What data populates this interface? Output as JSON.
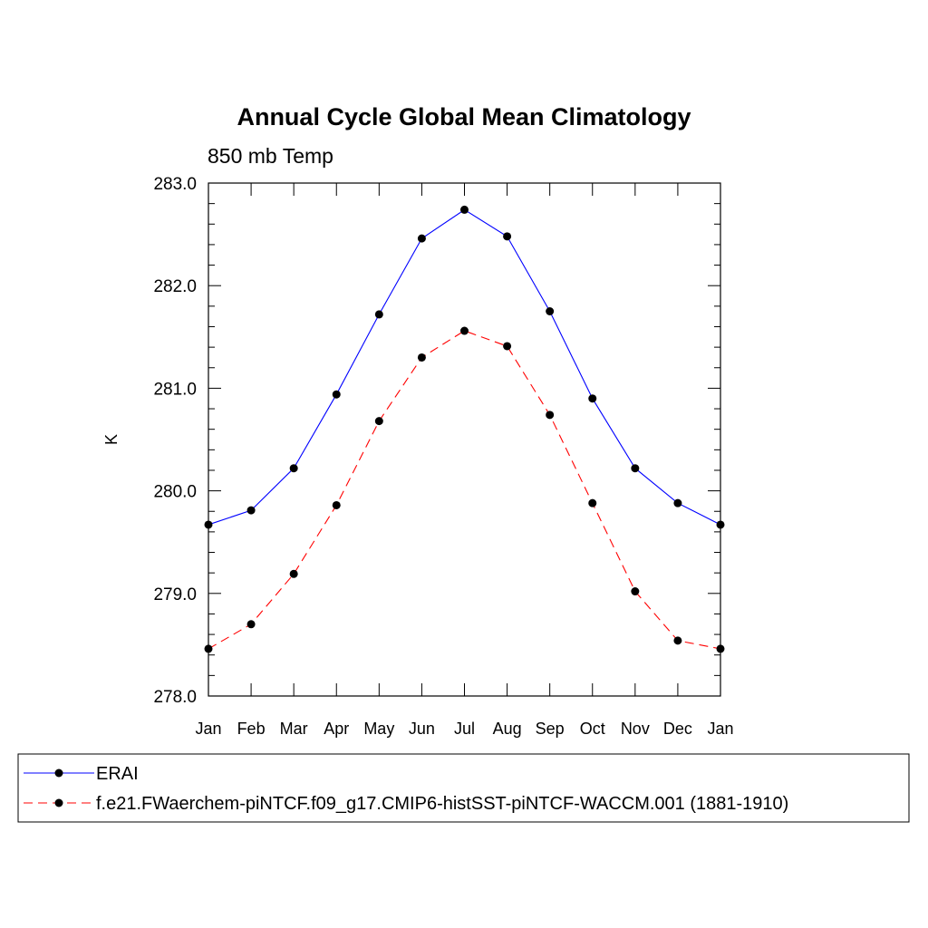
{
  "chart_data": {
    "type": "line",
    "title": "Annual Cycle Global Mean Climatology",
    "subtitle": "850 mb Temp",
    "xlabel": "",
    "ylabel": "K",
    "categories": [
      "Jan",
      "Feb",
      "Mar",
      "Apr",
      "May",
      "Jun",
      "Jul",
      "Aug",
      "Sep",
      "Oct",
      "Nov",
      "Dec",
      "Jan"
    ],
    "ylim": [
      278.0,
      283.0
    ],
    "yticks": [
      278.0,
      279.0,
      280.0,
      281.0,
      282.0,
      283.0
    ],
    "ytick_labels": [
      "278.0",
      "279.0",
      "280.0",
      "281.0",
      "282.0",
      "283.0"
    ],
    "grid": false,
    "legend_position": "bottom",
    "series": [
      {
        "name": "ERAI",
        "color": "#0000ff",
        "dash": "solid",
        "marker": "filled-circle",
        "values": [
          279.67,
          279.81,
          280.22,
          280.94,
          281.72,
          282.46,
          282.74,
          282.48,
          281.75,
          280.9,
          280.22,
          279.88,
          279.67
        ]
      },
      {
        "name": "f.e21.FWaerchem-piNTCF.f09_g17.CMIP6-histSST-piNTCF-WACCM.001 (1881-1910)",
        "color": "#ff0000",
        "dash": "dashed",
        "marker": "filled-circle",
        "values": [
          278.46,
          278.7,
          279.19,
          279.86,
          280.68,
          281.3,
          281.56,
          281.41,
          280.74,
          279.88,
          279.02,
          278.54,
          278.46
        ]
      }
    ]
  }
}
